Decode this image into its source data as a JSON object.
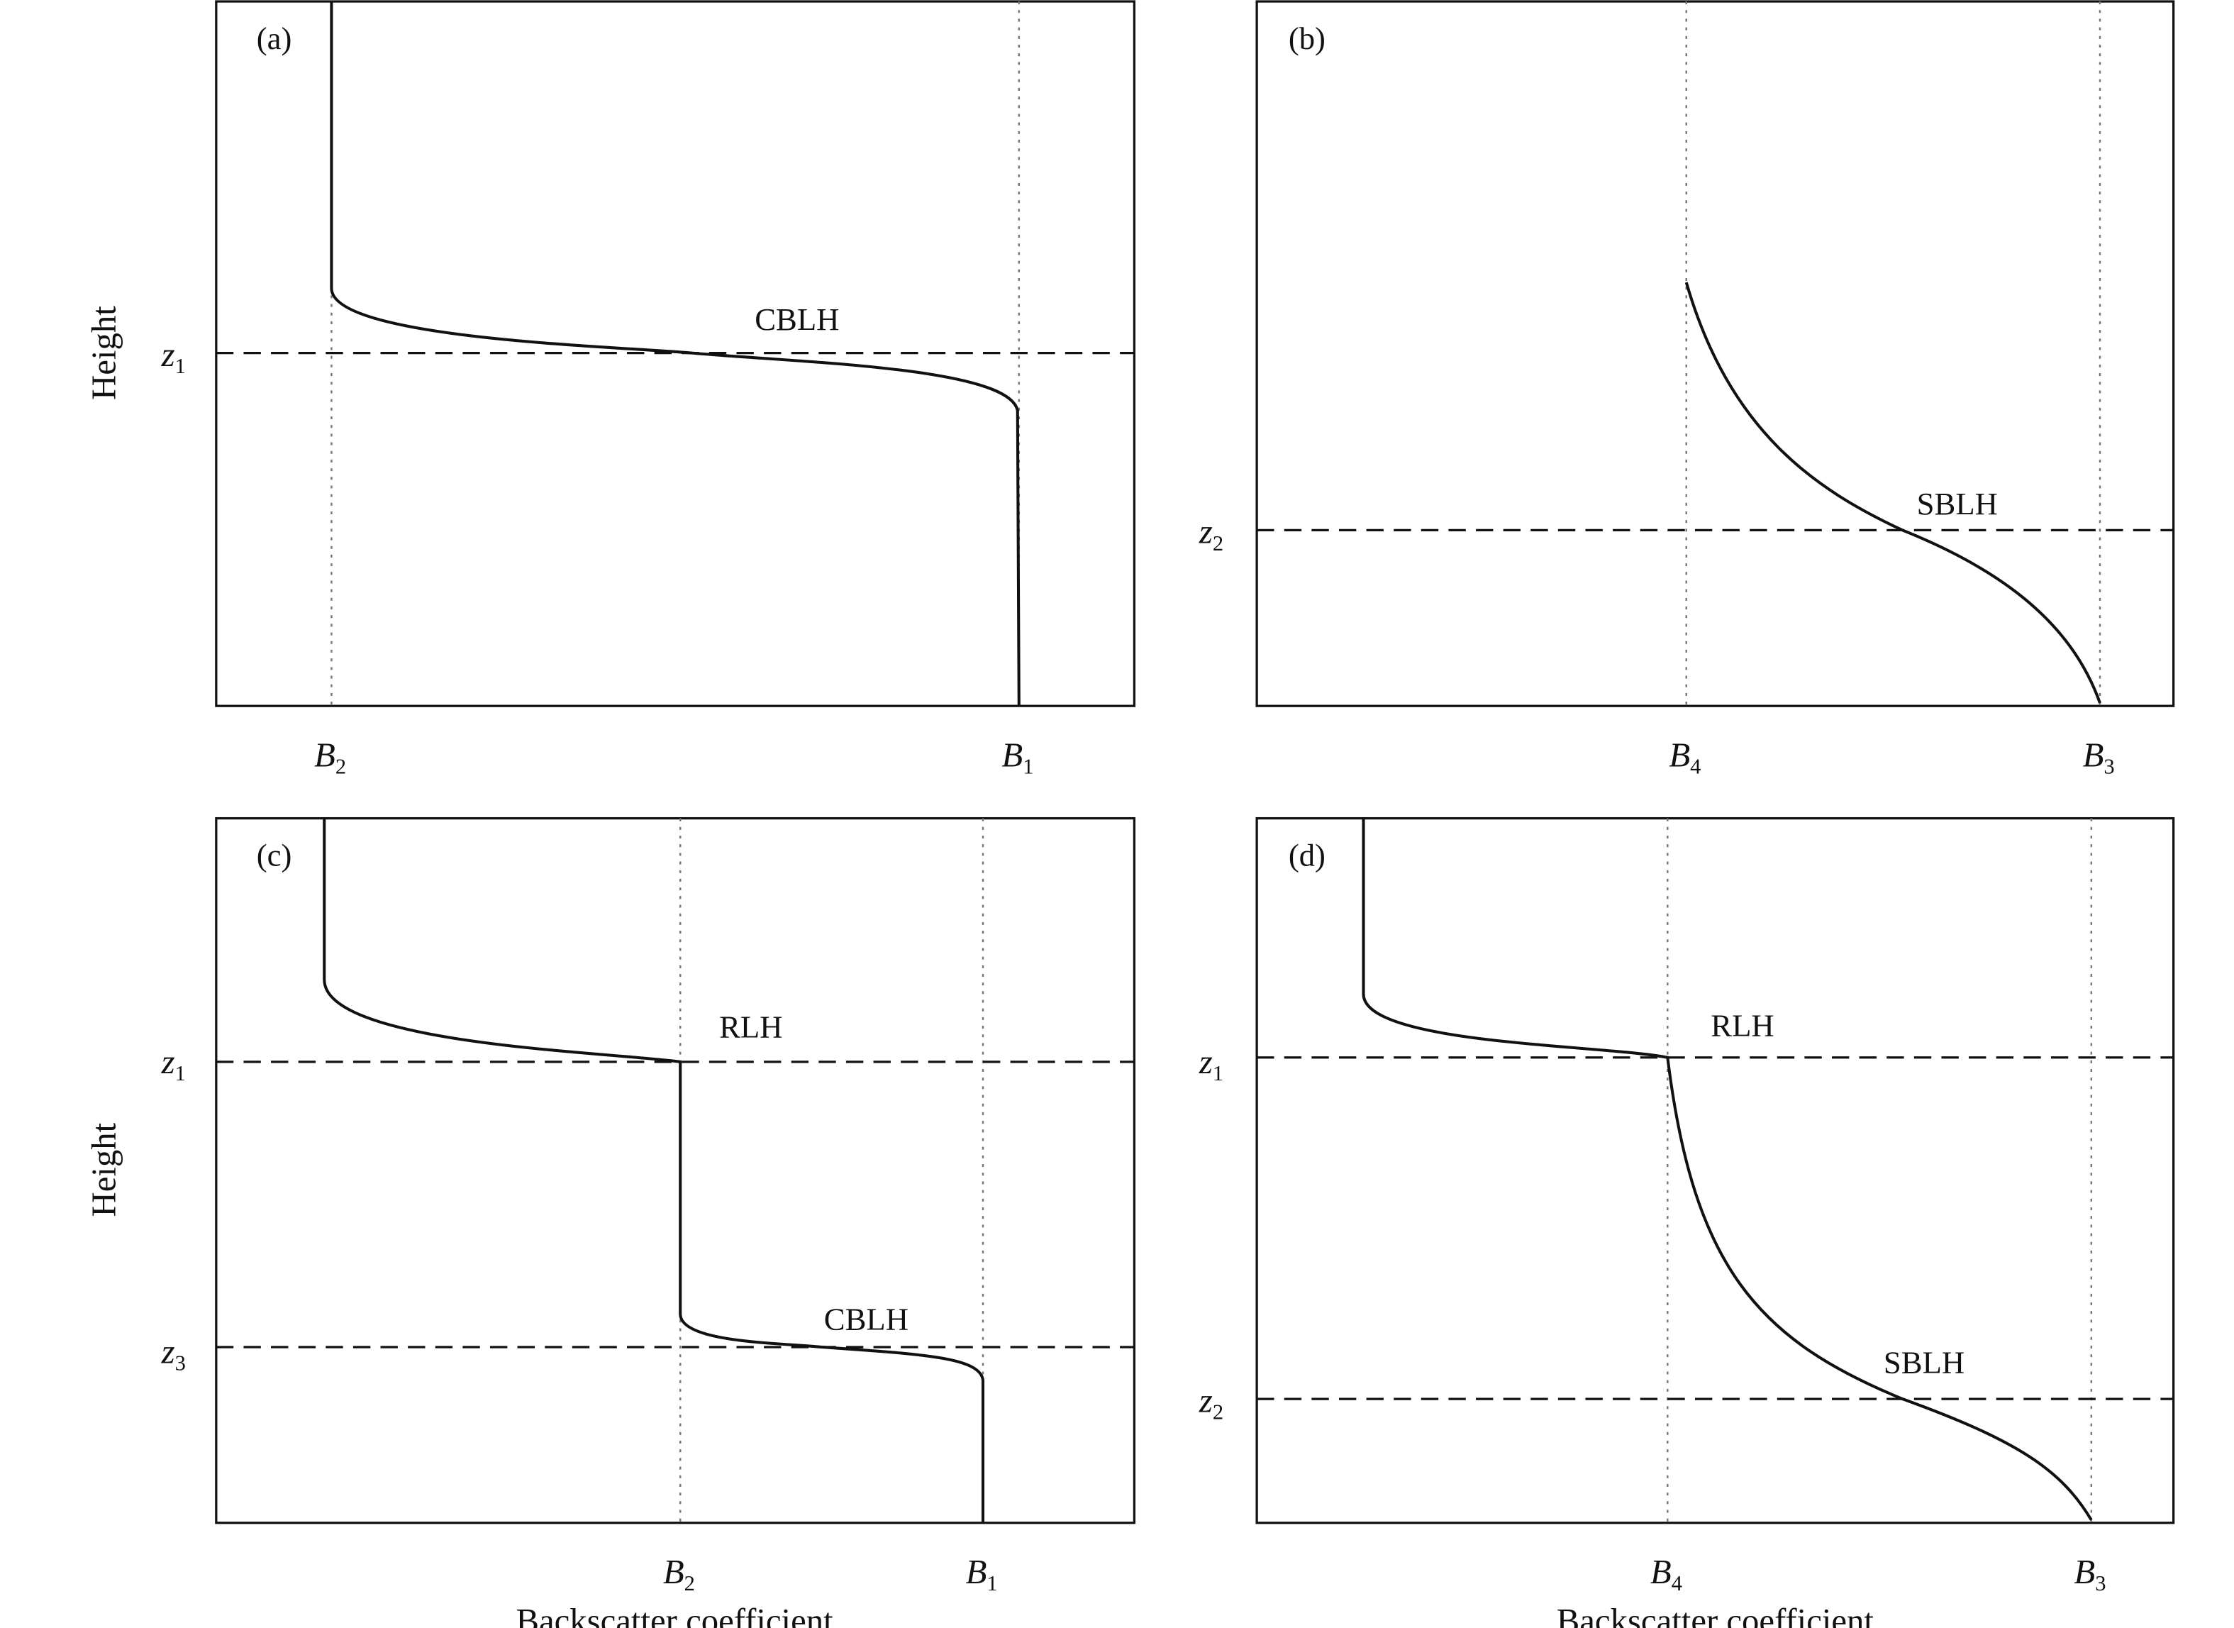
{
  "panels": [
    {
      "label": "(a)",
      "y_axis_label": "Height",
      "y_labels": [
        {
          "main": "z",
          "sub": "1"
        }
      ],
      "x_labels": [
        {
          "main": "B",
          "sub": "2"
        },
        {
          "main": "B",
          "sub": "1"
        }
      ],
      "annotations": [
        "CBLH"
      ]
    },
    {
      "label": "(b)",
      "y_labels": [
        {
          "main": "z",
          "sub": "2"
        }
      ],
      "x_labels": [
        {
          "main": "B",
          "sub": "4"
        },
        {
          "main": "B",
          "sub": "3"
        }
      ],
      "annotations": [
        "SBLH"
      ]
    },
    {
      "label": "(c)",
      "y_axis_label": "Height",
      "x_axis_label": "Backscatter coefficient",
      "y_labels": [
        {
          "main": "z",
          "sub": "1"
        },
        {
          "main": "z",
          "sub": "3"
        }
      ],
      "x_labels": [
        {
          "main": "B",
          "sub": "2"
        },
        {
          "main": "B",
          "sub": "1"
        }
      ],
      "annotations": [
        "RLH",
        "CBLH"
      ]
    },
    {
      "label": "(d)",
      "x_axis_label": "Backscatter coefficient",
      "y_labels": [
        {
          "main": "z",
          "sub": "1"
        },
        {
          "main": "z",
          "sub": "2"
        }
      ],
      "x_labels": [
        {
          "main": "B",
          "sub": "4"
        },
        {
          "main": "B",
          "sub": "3"
        }
      ],
      "annotations": [
        "RLH",
        "SBLH"
      ]
    }
  ]
}
